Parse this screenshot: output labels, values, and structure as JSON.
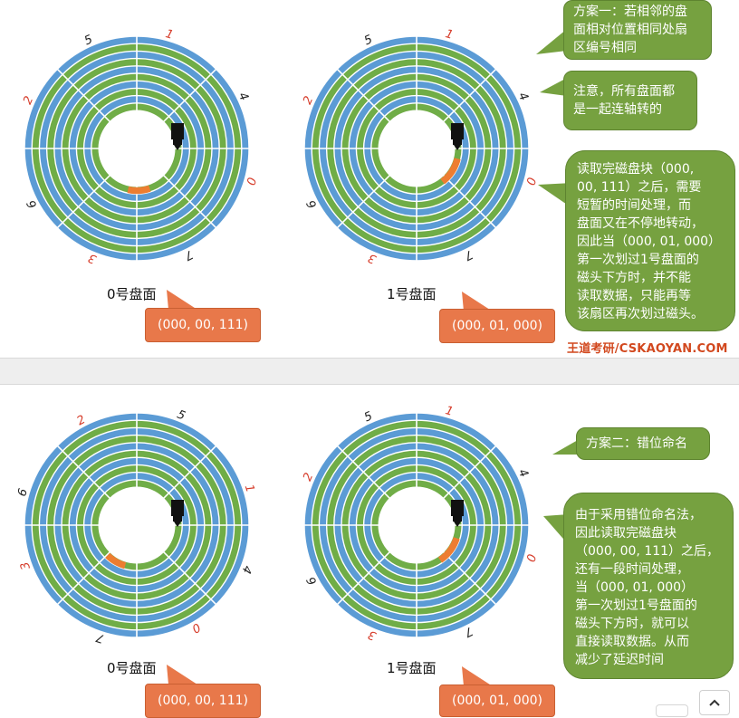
{
  "disks": [
    {
      "id": "top-0",
      "label": "0号盘面",
      "address": "(000, 00, 111)",
      "sector_labels": [
        {
          "text": "0",
          "color": "#d63c2a"
        },
        {
          "text": "1",
          "color": "#d63c2a"
        },
        {
          "text": "2",
          "color": "#d63c2a"
        },
        {
          "text": "3",
          "color": "#d63c2a"
        },
        {
          "text": "4",
          "color": "#222222"
        },
        {
          "text": "5",
          "color": "#222222"
        },
        {
          "text": "6",
          "color": "#222222"
        },
        {
          "text": "7",
          "color": "#222222"
        }
      ],
      "head_icon": "read-write-head-icon",
      "highlight_sector": "7"
    },
    {
      "id": "top-1",
      "label": "1号盘面",
      "address": "(000, 01, 000)",
      "sector_labels": [
        {
          "text": "0",
          "color": "#d63c2a"
        },
        {
          "text": "1",
          "color": "#d63c2a"
        },
        {
          "text": "2",
          "color": "#d63c2a"
        },
        {
          "text": "3",
          "color": "#d63c2a"
        },
        {
          "text": "4",
          "color": "#222222"
        },
        {
          "text": "5",
          "color": "#222222"
        },
        {
          "text": "6",
          "color": "#222222"
        },
        {
          "text": "7",
          "color": "#222222"
        }
      ],
      "head_icon": "read-write-head-icon",
      "highlight_sector": "0"
    },
    {
      "id": "bottom-0",
      "label": "0号盘面",
      "address": "(000, 00, 111)",
      "sector_labels": [
        {
          "text": "0",
          "color": "#d63c2a"
        },
        {
          "text": "1",
          "color": "#d63c2a"
        },
        {
          "text": "2",
          "color": "#d63c2a"
        },
        {
          "text": "3",
          "color": "#d63c2a"
        },
        {
          "text": "4",
          "color": "#222222"
        },
        {
          "text": "5",
          "color": "#222222"
        },
        {
          "text": "6",
          "color": "#222222"
        },
        {
          "text": "7",
          "color": "#222222"
        }
      ],
      "head_icon": "read-write-head-icon",
      "highlight_sector": "7"
    },
    {
      "id": "bottom-1",
      "label": "1号盘面",
      "address": "(000, 01, 000)",
      "sector_labels": [
        {
          "text": "0",
          "color": "#d63c2a"
        },
        {
          "text": "1",
          "color": "#d63c2a"
        },
        {
          "text": "2",
          "color": "#d63c2a"
        },
        {
          "text": "3",
          "color": "#d63c2a"
        },
        {
          "text": "4",
          "color": "#222222"
        },
        {
          "text": "5",
          "color": "#222222"
        },
        {
          "text": "6",
          "color": "#222222"
        },
        {
          "text": "7",
          "color": "#222222"
        }
      ],
      "head_icon": "read-write-head-icon",
      "highlight_sector": "0"
    }
  ],
  "notes": {
    "scheme1": "方案一：若相邻的盘\n面相对位置相同处扇\n区编号相同",
    "attention": "注意，所有盘面都\n是一起连轴转的",
    "read_delay": "读取完磁盘块（000,\n00, 111）之后，需要\n短暂的时间处理，而\n盘面又在不停地转动，\n因此当（000, 01, 000）\n第一次划过1号盘面的\n磁头下方时，并不能\n读取数据，只能再等\n该扇区再次划过磁头。",
    "scheme2": "方案二：错位命名",
    "staggered": "由于采用错位命名法，\n因此读取完磁盘块\n（000, 00, 111）之后，\n还有一段时间处理，\n当（000, 01, 000）\n第一次划过1号盘面的\n磁头下方时，就可以\n直接读取数据。从而\n减少了延迟时间"
  },
  "brand": "王道考研/CSKAOYAN.COM",
  "colors": {
    "ring_blue": "#5b9bd5",
    "ring_green": "#70ad47",
    "highlight": "#ed7d31",
    "note_green": "#76a140",
    "address_orange": "#e8784a"
  }
}
